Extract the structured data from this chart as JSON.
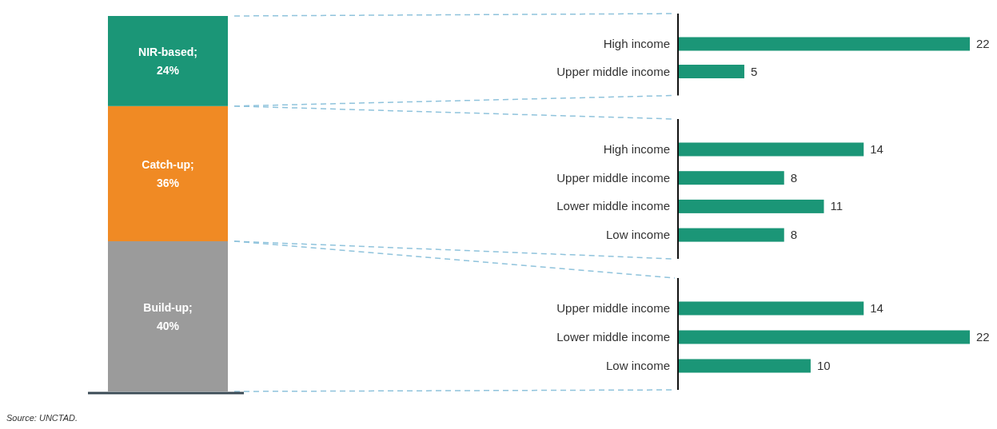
{
  "chart_data": [
    {
      "type": "bar",
      "stacked": true,
      "categories": [
        null
      ],
      "series": [
        {
          "name": "Build-up;",
          "color": "#9b9b9b",
          "values": [
            40
          ],
          "value_labels": [
            "40%"
          ]
        },
        {
          "name": "Catch-up;",
          "color": "#f08a24",
          "values": [
            36
          ],
          "value_labels": [
            "36%"
          ]
        },
        {
          "name": "NIR-based;",
          "color": "#1b9677",
          "values": [
            24
          ],
          "value_labels": [
            "24%"
          ]
        }
      ],
      "annotations": [
        "Source: UNCTAD."
      ]
    },
    {
      "type": "bar",
      "orientation": "horizontal",
      "categories": [
        "High income",
        "Upper middle income"
      ],
      "values": [
        22,
        5
      ],
      "color": "#1b9677",
      "data_labels": true
    },
    {
      "type": "bar",
      "orientation": "horizontal",
      "categories": [
        "High income",
        "Upper middle income",
        "Lower middle income",
        "Low income"
      ],
      "values": [
        14,
        8,
        11,
        8
      ],
      "color": "#1b9677",
      "data_labels": true
    },
    {
      "type": "bar",
      "orientation": "horizontal",
      "categories": [
        "Upper middle income",
        "Lower middle income",
        "Low income"
      ],
      "values": [
        14,
        22,
        10
      ],
      "color": "#1b9677",
      "data_labels": true
    }
  ]
}
